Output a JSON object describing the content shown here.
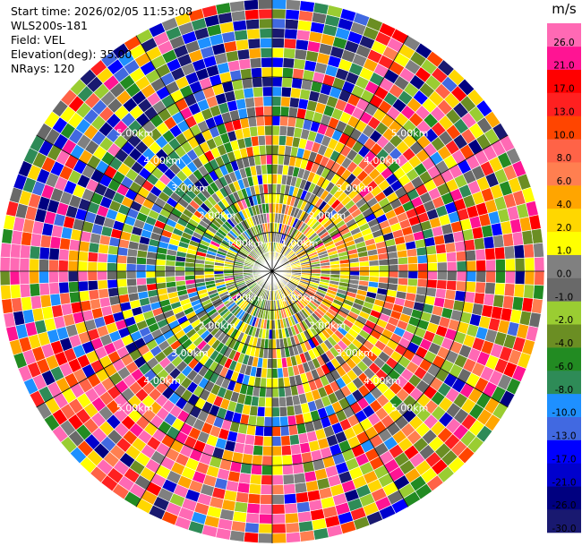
{
  "header": {
    "start_time": "Start time: 2026/02/05 11:53:08",
    "instrument": "WLS200s-181",
    "field": "Field: VEL",
    "elevation": "Elevation(deg): 35.00",
    "nrays": "NRays: 120"
  },
  "chart_data": {
    "type": "heatmap",
    "projection": "polar-ppi",
    "field": "VEL",
    "units": "m/s",
    "nrays": 120,
    "elevation_deg": 35.0,
    "max_range_km": 7.0,
    "range_gates": 28,
    "range_rings_km": [
      1,
      2,
      3,
      4,
      5
    ],
    "ring_labels": [
      "1.00km",
      "2.00km",
      "3.00km",
      "4.00km",
      "5.00km"
    ],
    "colorbar": {
      "unit_label": "m/s",
      "bounds": [
        "-30.0",
        "-26.0",
        "-21.0",
        "-17.0",
        "-13.0",
        "-10.0",
        "-8.0",
        "-6.0",
        "-4.0",
        "-2.0",
        "-1.0",
        "0.0",
        "1.0",
        "2.0",
        "4.0",
        "6.0",
        "8.0",
        "10.0",
        "13.0",
        "17.0",
        "21.0",
        "26.0"
      ],
      "colors": [
        "#191970",
        "#000080",
        "#0000cd",
        "#0000ff",
        "#4169e1",
        "#1e90ff",
        "#2e8b57",
        "#228b22",
        "#6b8e23",
        "#9acd32",
        "#696969",
        "#808080",
        "#ffff00",
        "#ffd700",
        "#ffa500",
        "#ff7f50",
        "#ff6347",
        "#ff4500",
        "#ff2020",
        "#ff0000",
        "#ff1493",
        "#ff69b4"
      ]
    }
  }
}
